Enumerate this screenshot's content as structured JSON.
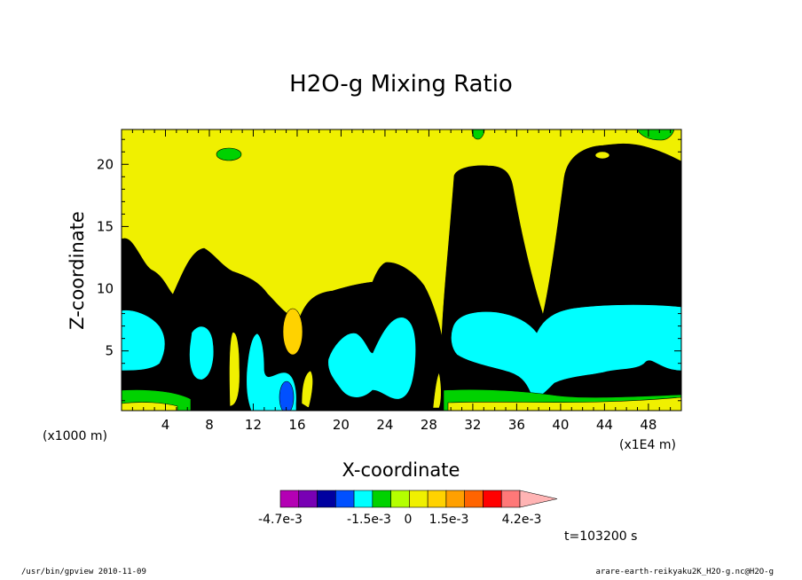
{
  "chart_data": {
    "type": "contour",
    "title": "H2O-g Mixing Ratio",
    "xlabel": "X-coordinate",
    "ylabel": "Z-coordinate",
    "x_scale_label": "(x1E4 m)",
    "y_scale_label": "(x1000 m)",
    "x_ticks": [
      "4",
      "8",
      "12",
      "16",
      "20",
      "24",
      "28",
      "32",
      "36",
      "40",
      "44",
      "48"
    ],
    "y_ticks": [
      "5",
      "10",
      "15",
      "20"
    ],
    "x_range": [
      0,
      51
    ],
    "y_range": [
      0.2,
      22.8
    ],
    "time_label": "t=103200 s",
    "colorbar": {
      "colors": [
        "#b400b4",
        "#7800b4",
        "#0000a0",
        "#0050ff",
        "#00ffff",
        "#00d200",
        "#b4ff00",
        "#f0f000",
        "#ffd200",
        "#ffa000",
        "#ff6400",
        "#ff0000",
        "#ff7878",
        "#ffb4b4"
      ],
      "labels": [
        "-4.7e-3",
        "-1.5e-3",
        "0",
        "1.5e-3",
        "4.2e-3"
      ]
    },
    "levels": {
      "background": "#f0f000",
      "green": "#00d200",
      "cyan": "#00ffff",
      "orange": "#ffd200",
      "blue": "#0050ff"
    }
  },
  "footer": {
    "left": "/usr/bin/gpview   2010-11-09",
    "right": "arare-earth-reikyaku2K_H2O-g.nc@H2O-g"
  }
}
